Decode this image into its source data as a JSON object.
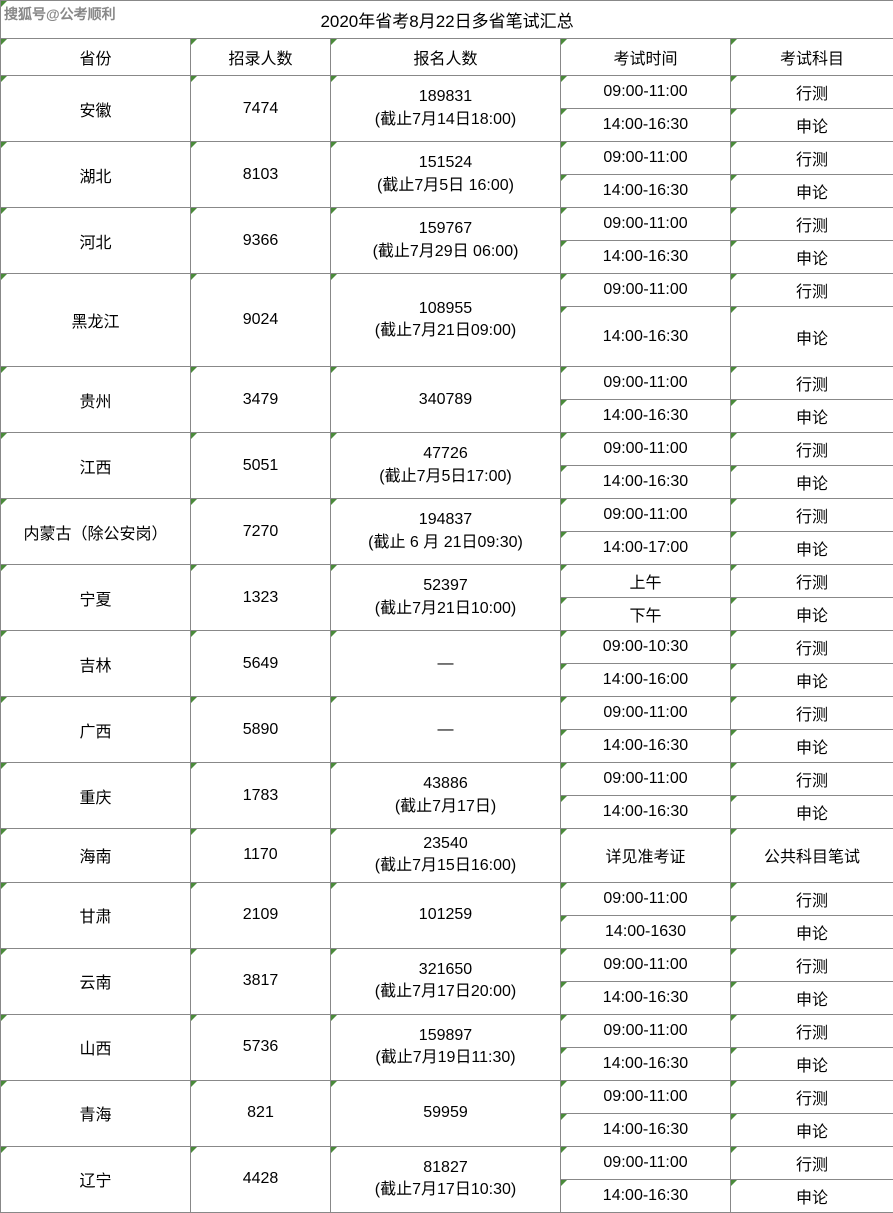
{
  "watermark": "搜狐号@公考顺利",
  "title": "2020年省考8月22日多省笔试汇总",
  "headers": {
    "province": "省份",
    "recruit": "招录人数",
    "apply": "报名人数",
    "time": "考试时间",
    "subject": "考试科目"
  },
  "rows": [
    {
      "province": "安徽",
      "recruit": "7474",
      "apply_line1": "189831",
      "apply_line2": "(截止7月14日18:00)",
      "time1": "09:00-11:00",
      "subject1": "行测",
      "time2": "14:00-16:30",
      "subject2": "申论"
    },
    {
      "province": "湖北",
      "recruit": "8103",
      "apply_line1": "151524",
      "apply_line2": "(截止7月5日 16:00)",
      "time1": "09:00-11:00",
      "subject1": "行测",
      "time2": "14:00-16:30",
      "subject2": "申论"
    },
    {
      "province": "河北",
      "recruit": "9366",
      "apply_line1": "159767",
      "apply_line2": "(截止7月29日 06:00)",
      "time1": "09:00-11:00",
      "subject1": "行测",
      "time2": "14:00-16:30",
      "subject2": "申论"
    },
    {
      "province": "黑龙江",
      "recruit": "9024",
      "apply_line1": "108955",
      "apply_line2": "(截止7月21日09:00)",
      "time1": "09:00-11:00",
      "subject1": "行测",
      "time2": "14:00-16:30",
      "subject2": "申论",
      "tall": true
    },
    {
      "province": "贵州",
      "recruit": "3479",
      "apply_line1": "340789",
      "apply_line2": "",
      "time1": "09:00-11:00",
      "subject1": "行测",
      "time2": "14:00-16:30",
      "subject2": "申论"
    },
    {
      "province": "江西",
      "recruit": "5051",
      "apply_line1": "47726",
      "apply_line2": "(截止7月5日17:00)",
      "time1": "09:00-11:00",
      "subject1": "行测",
      "time2": "14:00-16:30",
      "subject2": "申论"
    },
    {
      "province": "内蒙古（除公安岗）",
      "recruit": "7270",
      "apply_line1": "194837",
      "apply_line2": "(截止 6 月 21日09:30)",
      "time1": "09:00-11:00",
      "subject1": "行测",
      "time2": "14:00-17:00",
      "subject2": "申论"
    },
    {
      "province": "宁夏",
      "recruit": "1323",
      "apply_line1": "52397",
      "apply_line2": "(截止7月21日10:00)",
      "time1": "上午",
      "subject1": "行测",
      "time2": "下午",
      "subject2": "申论"
    },
    {
      "province": "吉林",
      "recruit": "5649",
      "apply_line1": "—",
      "apply_line2": "",
      "time1": "09:00-10:30",
      "subject1": "行测",
      "time2": "14:00-16:00",
      "subject2": "申论"
    },
    {
      "province": "广西",
      "recruit": "5890",
      "apply_line1": "—",
      "apply_line2": "",
      "time1": "09:00-11:00",
      "subject1": "行测",
      "time2": "14:00-16:30",
      "subject2": "申论"
    },
    {
      "province": "重庆",
      "recruit": "1783",
      "apply_line1": "43886",
      "apply_line2": "(截止7月17日)",
      "time1": "09:00-11:00",
      "subject1": "行测",
      "time2": "14:00-16:30",
      "subject2": "申论"
    },
    {
      "province": "海南",
      "recruit": "1170",
      "apply_line1": "23540",
      "apply_line2": "(截止7月15日16:00)",
      "time_single": "详见准考证",
      "subject_single": "公共科目笔试",
      "single_row": true
    },
    {
      "province": "甘肃",
      "recruit": "2109",
      "apply_line1": "101259",
      "apply_line2": "",
      "time1": "09:00-11:00",
      "subject1": "行测",
      "time2": "14:00-1630",
      "subject2": "申论"
    },
    {
      "province": "云南",
      "recruit": "3817",
      "apply_line1": "321650",
      "apply_line2": "(截止7月17日20:00)",
      "time1": "09:00-11:00",
      "subject1": "行测",
      "time2": "14:00-16:30",
      "subject2": "申论"
    },
    {
      "province": "山西",
      "recruit": "5736",
      "apply_line1": "159897",
      "apply_line2": "(截止7月19日11:30)",
      "time1": "09:00-11:00",
      "subject1": "行测",
      "time2": "14:00-16:30",
      "subject2": "申论"
    },
    {
      "province": "青海",
      "recruit": "821",
      "apply_line1": "59959",
      "apply_line2": "",
      "time1": "09:00-11:00",
      "subject1": "行测",
      "time2": "14:00-16:30",
      "subject2": "申论"
    },
    {
      "province": "辽宁",
      "recruit": "4428",
      "apply_line1": "81827",
      "apply_line2": "(截止7月17日10:30)",
      "time1": "09:00-11:00",
      "subject1": "行测",
      "time2": "14:00-16:30",
      "subject2": "申论"
    }
  ]
}
